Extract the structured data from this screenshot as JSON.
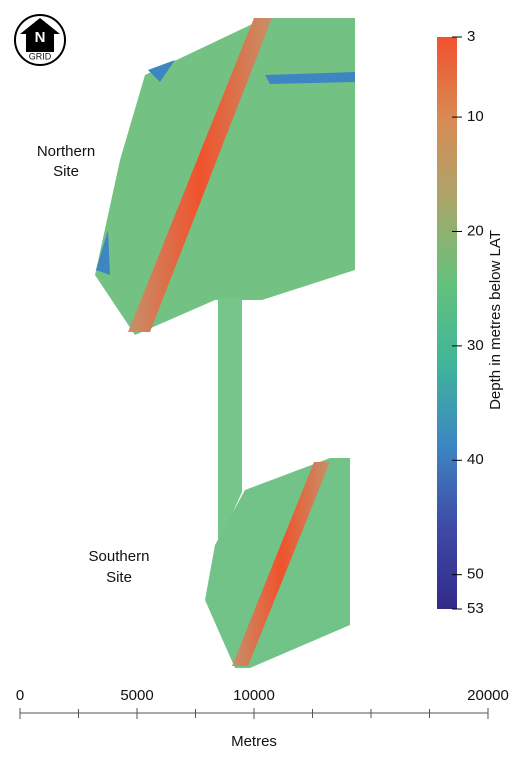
{
  "north_arrow": {
    "letter": "N",
    "label": "GRID"
  },
  "site_labels": [
    {
      "lines": [
        "Northern",
        "Site"
      ]
    },
    {
      "lines": [
        "Southern",
        "Site"
      ]
    }
  ],
  "colorbar": {
    "title": "Depth in metres below LAT",
    "lim": [
      3,
      53
    ],
    "ticks": [
      3,
      10,
      20,
      30,
      40,
      50,
      53
    ],
    "colors": [
      "#f0522c",
      "#d98a55",
      "#a9a66a",
      "#66c17c",
      "#3fb59a",
      "#3d86c2",
      "#3f4aa5",
      "#332a8a"
    ]
  },
  "scale_bar": {
    "title": "Metres",
    "lim": [
      0,
      20000
    ],
    "ticks": [
      0,
      5000,
      10000,
      20000
    ]
  }
}
